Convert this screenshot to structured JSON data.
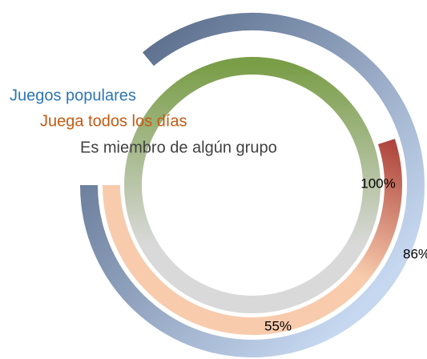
{
  "chart_data": {
    "type": "radial_bar",
    "categories": [
      "Juegos populares",
      "Juega todos los días",
      "Es miembro de algún grupo"
    ],
    "values": [
      86,
      55,
      100
    ],
    "value_labels": [
      "86%",
      "55%",
      "100%"
    ],
    "colors": [
      [
        "#4f6281",
        "#c6d8f0"
      ],
      [
        "#a5362f",
        "#f8cbad"
      ],
      [
        "#7a9e48",
        "#d9d9d9"
      ]
    ],
    "label_colors": [
      "#2e75b6",
      "#c55a11",
      "#404040"
    ]
  }
}
